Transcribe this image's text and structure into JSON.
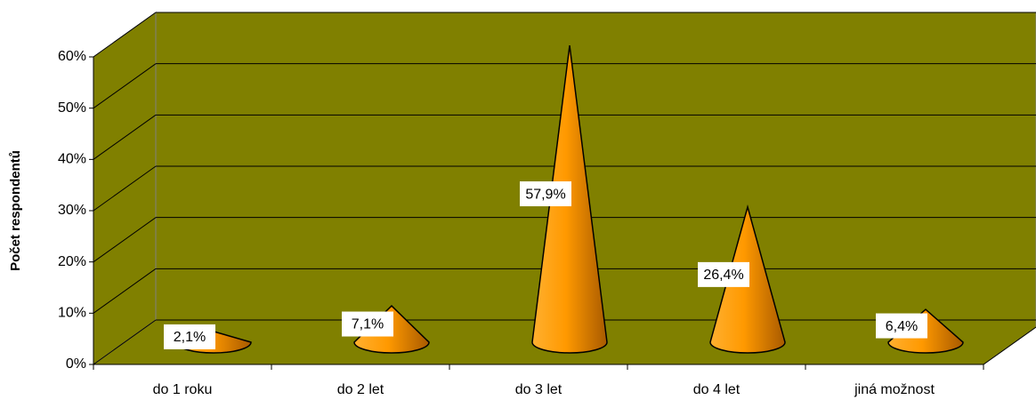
{
  "chart_data": {
    "type": "cone",
    "y_axis_label": "Počet respondentů",
    "categories": [
      "do 1 roku",
      "do 2 let",
      "do 3 let",
      "do 4 let",
      "jiná možnost"
    ],
    "values": [
      2.1,
      7.1,
      57.9,
      26.4,
      6.4
    ],
    "value_labels": [
      "2,1%",
      "7,1%",
      "57,9%",
      "26,4%",
      "6,4%"
    ],
    "color": "#ff9900",
    "wall_color": "#808000",
    "ylim": [
      0,
      60
    ],
    "yticks": [
      {
        "value": 0,
        "label": "0%"
      },
      {
        "value": 10,
        "label": "10%"
      },
      {
        "value": 20,
        "label": "20%"
      },
      {
        "value": 30,
        "label": "30%"
      },
      {
        "value": 40,
        "label": "40%"
      },
      {
        "value": 50,
        "label": "50%"
      },
      {
        "value": 60,
        "label": "60%"
      }
    ],
    "grid": true
  }
}
